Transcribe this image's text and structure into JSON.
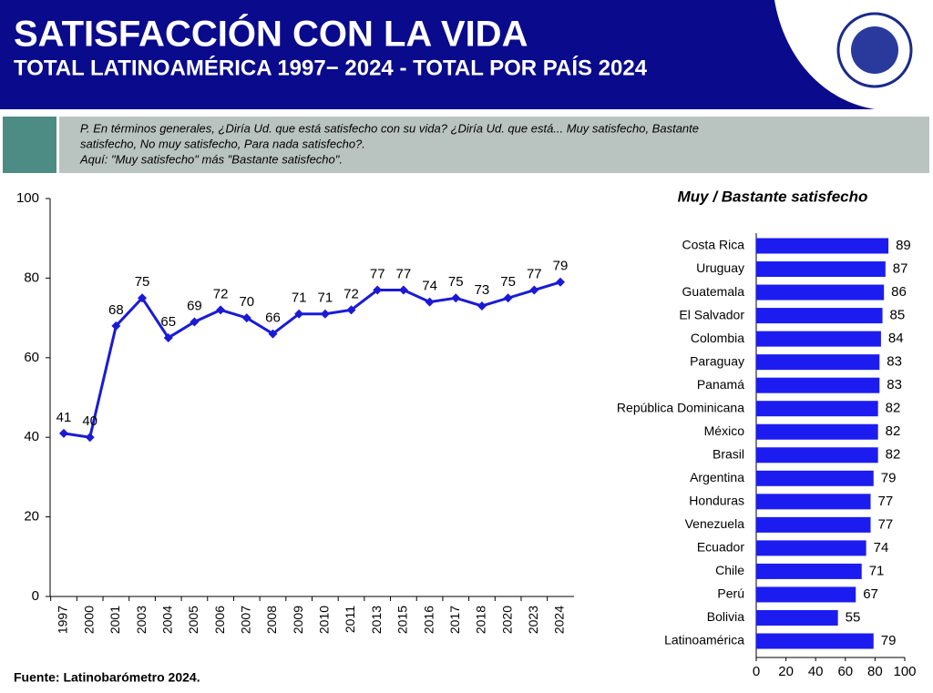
{
  "header": {
    "title": "SATISFACCIÓN CON LA VIDA",
    "subtitle": "TOTAL LATINOAMÉRICA 1997− 2024 - TOTAL POR PAÍS 2024"
  },
  "question": {
    "lines": [
      "P. En términos generales, ¿Diría Ud. que está  satisfecho con su vida? ¿Diría Ud. que está... Muy satisfecho, Bastante",
      "satisfecho, No muy satisfecho, Para nada satisfecho?.",
      "Aquí: \"Muy satisfecho\" más \"Bastante satisfecho\"."
    ]
  },
  "source": "Fuente: Latinobarómetro 2024.",
  "chart_data": [
    {
      "type": "line",
      "color": "#1a1ad6",
      "categories": [
        "1997",
        "2000",
        "2001",
        "2003",
        "2004",
        "2005",
        "2006",
        "2007",
        "2008",
        "2009",
        "2010",
        "2011",
        "2013",
        "2015",
        "2016",
        "2017",
        "2018",
        "2020",
        "2023",
        "2024"
      ],
      "values": [
        41,
        40,
        68,
        75,
        65,
        69,
        72,
        70,
        66,
        71,
        71,
        72,
        77,
        77,
        74,
        75,
        73,
        75,
        77,
        79
      ],
      "ylim": [
        0,
        100
      ],
      "yticks": [
        0,
        20,
        40,
        60,
        80,
        100
      ]
    },
    {
      "type": "bar",
      "orientation": "horizontal",
      "title": "Muy / Bastante satisfecho",
      "color": "#1c1cf0",
      "categories": [
        "Costa Rica",
        "Uruguay",
        "Guatemala",
        "El Salvador",
        "Colombia",
        "Paraguay",
        "Panamá",
        "República Dominicana",
        "México",
        "Brasil",
        "Argentina",
        "Honduras",
        "Venezuela",
        "Ecuador",
        "Chile",
        "Perú",
        "Bolivia",
        "Latinoamérica"
      ],
      "values": [
        89,
        87,
        86,
        85,
        84,
        83,
        83,
        82,
        82,
        82,
        79,
        77,
        77,
        74,
        71,
        67,
        55,
        79
      ],
      "xlim": [
        0,
        100
      ],
      "xticks": [
        0,
        20,
        40,
        60,
        80,
        100
      ]
    }
  ]
}
